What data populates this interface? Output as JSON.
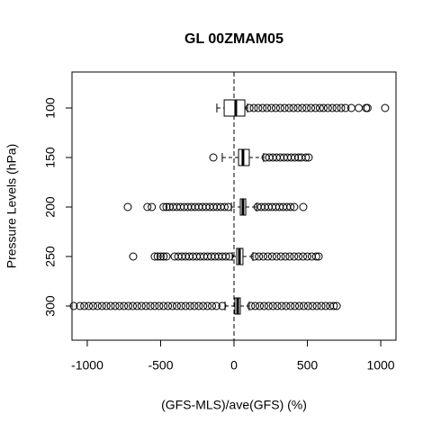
{
  "chart_data": {
    "type": "boxplot",
    "orientation": "horizontal",
    "title": "GL 00ZMAM05",
    "xlabel": "(GFS-MLS)/ave(GFS) (%)",
    "ylabel": "Pressure Levels (hPa)",
    "categories": [
      "100",
      "150",
      "200",
      "250",
      "300"
    ],
    "xlim": [
      -1104,
      1104
    ],
    "xticks": [
      -1000,
      -500,
      0,
      500,
      1000
    ],
    "refline": 0,
    "color": "#000000",
    "boxes": [
      {
        "whislo": -117,
        "q1": -67,
        "med": 12,
        "q3": 74,
        "whishi": 92,
        "outliers": [
          105,
          135,
          165,
          195,
          225,
          255,
          285,
          315,
          345,
          375,
          405,
          435,
          465,
          495,
          525,
          555,
          585,
          610,
          640,
          670,
          700,
          730,
          760,
          800,
          850,
          900,
          910,
          1030
        ]
      },
      {
        "whislo": -80,
        "q1": 31,
        "med": 61,
        "q3": 104,
        "whishi": 202,
        "outliers": [
          -141,
          215,
          240,
          265,
          290,
          315,
          340,
          365,
          390,
          415,
          440,
          460,
          490,
          509
        ]
      },
      {
        "whislo": -18,
        "q1": 43,
        "med": 61,
        "q3": 80,
        "whishi": 153,
        "outliers": [
          -724,
          -590,
          -560,
          -480,
          -460,
          -440,
          -415,
          -390,
          -365,
          -340,
          -315,
          -290,
          -265,
          -240,
          -215,
          -190,
          -165,
          -140,
          -115,
          -90,
          -65,
          -40,
          160,
          185,
          210,
          235,
          260,
          285,
          310,
          335,
          360,
          385,
          410,
          472
        ]
      },
      {
        "whislo": -12,
        "q1": 18,
        "med": 37,
        "q3": 61,
        "whishi": 129,
        "outliers": [
          -687,
          -540,
          -520,
          -500,
          -480,
          -460,
          -405,
          -380,
          -355,
          -330,
          -305,
          -280,
          -255,
          -230,
          -205,
          -180,
          -155,
          -130,
          -105,
          -80,
          -55,
          -30,
          141,
          170,
          200,
          230,
          260,
          290,
          320,
          350,
          380,
          410,
          440,
          470,
          500,
          530,
          560,
          577
        ]
      },
      {
        "whislo": -61,
        "q1": 6,
        "med": 25,
        "q3": 43,
        "whishi": 104,
        "outliers": [
          -1092,
          -1050,
          -1020,
          -990,
          -960,
          -930,
          -900,
          -870,
          -840,
          -810,
          -780,
          -750,
          -720,
          -690,
          -660,
          -630,
          -600,
          -570,
          -540,
          -510,
          -480,
          -450,
          -420,
          -390,
          -360,
          -330,
          -300,
          -270,
          -240,
          -210,
          -180,
          -150,
          -120,
          -80,
          116,
          145,
          175,
          205,
          235,
          265,
          295,
          325,
          355,
          385,
          415,
          445,
          475,
          505,
          535,
          565,
          595,
          625,
          655,
          680,
          700
        ]
      }
    ]
  }
}
